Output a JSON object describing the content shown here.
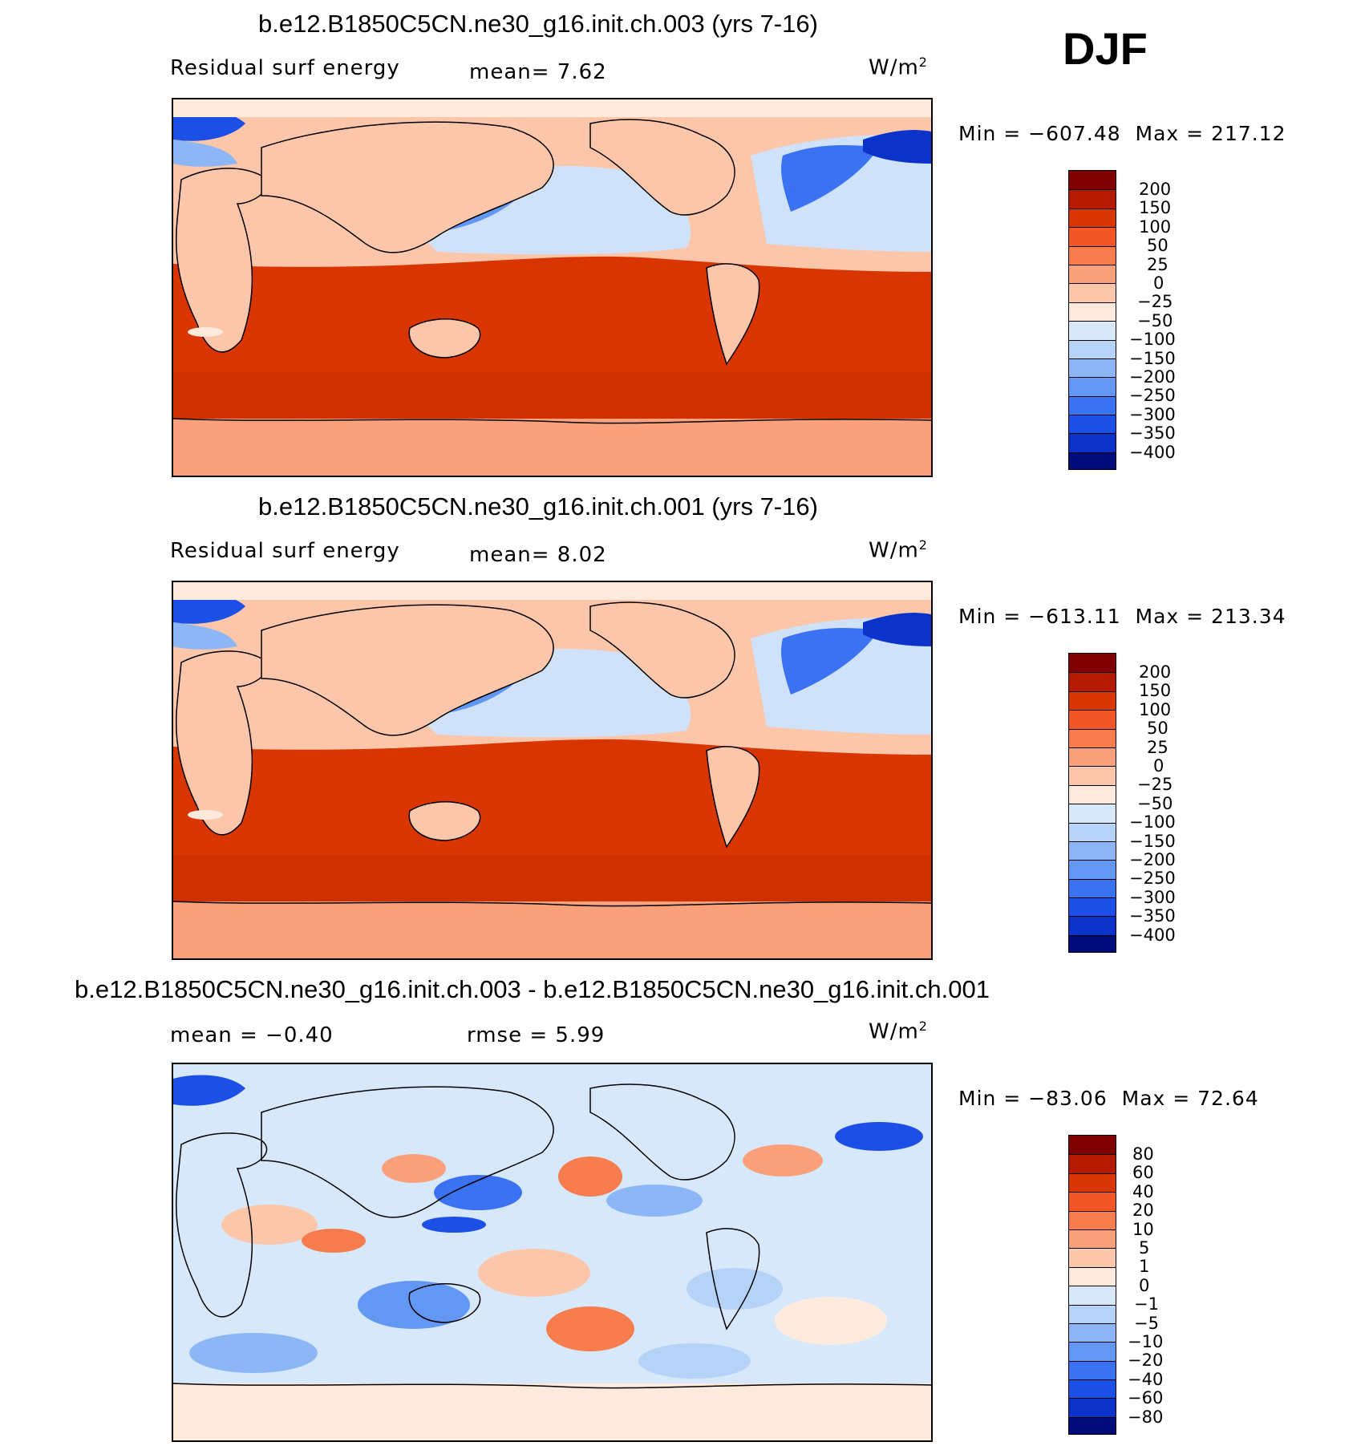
{
  "season": "DJF",
  "colors": {
    "abs": [
      "#7f0000",
      "#b51b00",
      "#d93500",
      "#f25526",
      "#f77d4f",
      "#faa07a",
      "#fcc6aa",
      "#feeadd",
      "#d8e8fb",
      "#b5d2f7",
      "#8cb6f5",
      "#6297f4",
      "#3a72f1",
      "#1c4fe6",
      "#0b33c9",
      "#001ca1",
      "#000c7a"
    ],
    "ocean_warm": "#d93500",
    "ocean_warm2": "#e04a18",
    "ocean_cool": "#cfe2fa",
    "land": "#fcc6aa",
    "polar": "#faa07a"
  },
  "panels": [
    {
      "title": "b.e12.B1850C5CN.ne30_g16.init.ch.003 (yrs 7-16)",
      "left_label": "Residual surf energy",
      "center_label": "mean=    7.62",
      "units": "W/m",
      "units_sup": "2",
      "min_label": "Min  =  −607.48",
      "max_label": "Max  =  217.12"
    },
    {
      "title": "b.e12.B1850C5CN.ne30_g16.init.ch.001 (yrs 7-16)",
      "left_label": "Residual surf energy",
      "center_label": "mean=    8.02",
      "units": "W/m",
      "units_sup": "2",
      "min_label": "Min  =  −613.11",
      "max_label": "Max  =  213.34"
    },
    {
      "title": "b.e12.B1850C5CN.ne30_g16.init.ch.003 - b.e12.B1850C5CN.ne30_g16.init.ch.001",
      "left_label": "mean  =   −0.40",
      "center_label": "rmse  =     5.99",
      "units": "W/m",
      "units_sup": "2",
      "min_label": "Min  =  −83.06",
      "max_label": "Max  =   72.64"
    }
  ],
  "colorbars": {
    "abs_ticks": [
      "200",
      "150",
      "100",
      "50",
      "25",
      "0",
      "−25",
      "−50",
      "−100",
      "−150",
      "−200",
      "−250",
      "−300",
      "−350",
      "−400"
    ],
    "diff_ticks": [
      "80",
      "60",
      "40",
      "20",
      "10",
      "5",
      "1",
      "0",
      "−1",
      "−5",
      "−10",
      "−20",
      "−40",
      "−60",
      "−80"
    ]
  }
}
